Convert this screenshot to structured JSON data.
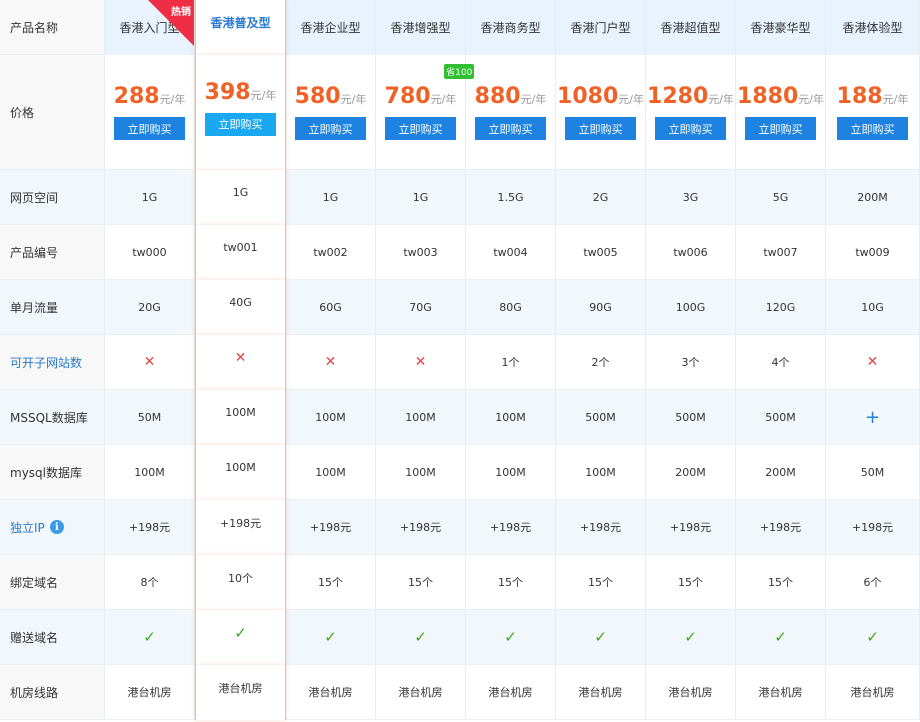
{
  "header_label": "产品名称",
  "price_label": "价格",
  "price_unit": "元/年",
  "buy_label": "立即购买",
  "hot_badge": "热销",
  "highlighted_index": 1,
  "colors": {
    "price": "#f06125",
    "button": "#1e83e0",
    "button_highlight": "#1aa9f0",
    "hot": "#ef2d45",
    "cross": "#e04848",
    "check": "#3aaa1e"
  },
  "products": [
    {
      "name": "香港入门型",
      "price": "288",
      "hot": true
    },
    {
      "name": "香港普及型",
      "price": "398"
    },
    {
      "name": "香港企业型",
      "price": "580"
    },
    {
      "name": "香港增强型",
      "price": "780",
      "tag": "省100"
    },
    {
      "name": "香港商务型",
      "price": "880"
    },
    {
      "name": "香港门户型",
      "price": "1080"
    },
    {
      "name": "香港超值型",
      "price": "1280"
    },
    {
      "name": "香港豪华型",
      "price": "1880"
    },
    {
      "name": "香港体验型",
      "price": "188"
    }
  ],
  "rows": [
    {
      "label": "网页空间",
      "values": [
        "1G",
        "1G",
        "1G",
        "1G",
        "1.5G",
        "2G",
        "3G",
        "5G",
        "200M"
      ]
    },
    {
      "label": "产品编号",
      "values": [
        "tw000",
        "tw001",
        "tw002",
        "tw003",
        "tw004",
        "tw005",
        "tw006",
        "tw007",
        "tw009"
      ]
    },
    {
      "label": "单月流量",
      "values": [
        "20G",
        "40G",
        "60G",
        "70G",
        "80G",
        "90G",
        "100G",
        "120G",
        "10G"
      ]
    },
    {
      "label": "可开子网站数",
      "link": true,
      "values": [
        "cross",
        "cross",
        "cross",
        "cross",
        "1个",
        "2个",
        "3个",
        "4个",
        "cross"
      ]
    },
    {
      "label": "MSSQL数据库",
      "values": [
        "50M",
        "100M",
        "100M",
        "100M",
        "100M",
        "500M",
        "500M",
        "500M",
        "plus"
      ]
    },
    {
      "label": "mysql数据库",
      "values": [
        "100M",
        "100M",
        "100M",
        "100M",
        "100M",
        "100M",
        "200M",
        "200M",
        "50M"
      ]
    },
    {
      "label": "独立IP",
      "link": true,
      "info": true,
      "values": [
        "+198元",
        "+198元",
        "+198元",
        "+198元",
        "+198元",
        "+198元",
        "+198元",
        "+198元",
        "+198元"
      ]
    },
    {
      "label": "绑定域名",
      "values": [
        "8个",
        "10个",
        "15个",
        "15个",
        "15个",
        "15个",
        "15个",
        "15个",
        "6个"
      ]
    },
    {
      "label": "赠送域名",
      "values": [
        "check",
        "check",
        "check",
        "check",
        "check",
        "check",
        "check",
        "check",
        "check"
      ]
    },
    {
      "label": "机房线路",
      "values": [
        "港台机房",
        "港台机房",
        "港台机房",
        "港台机房",
        "港台机房",
        "港台机房",
        "港台机房",
        "港台机房",
        "港台机房"
      ]
    }
  ],
  "icons": {
    "cross": "✕",
    "check": "✓",
    "plus": "+",
    "info": "i"
  }
}
